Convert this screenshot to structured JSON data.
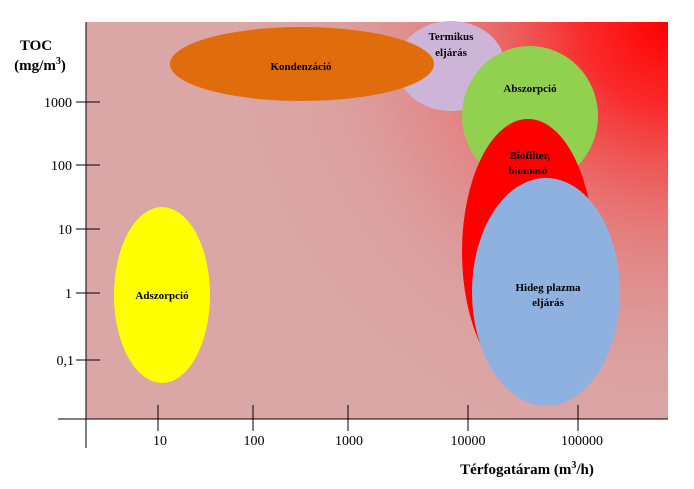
{
  "y_axis": {
    "title_line1": "TOC",
    "title_line2_prefix": "(mg/m",
    "title_line2_sup": "3",
    "title_line2_suffix": ")",
    "ticks": [
      "1000",
      "100",
      "10",
      "1",
      "0,1"
    ]
  },
  "x_axis": {
    "title_prefix": "Térfogatáram (m",
    "title_sup": "3",
    "title_suffix": "/h)",
    "ticks": [
      "10",
      "100",
      "1000",
      "10000",
      "100000"
    ]
  },
  "regions": {
    "kondenzacio": "Kondenzáció",
    "termikus_1": "Termikus",
    "termikus_2": "eljárás",
    "abszorpcio": "Abszorpció",
    "biofilter_1": "Biofilter,",
    "biofilter_2": "biomosó",
    "hideg_1": "Hideg plazma",
    "hideg_2": "eljárás",
    "adszorpcio": "Adszorpció"
  },
  "colors": {
    "background_base": "#dba6a6",
    "background_hot": "#ff0000",
    "kondenzacio": "#e06c0c",
    "termikus": "#cdb5d8",
    "abszorpcio": "#92d050",
    "biofilter": "#ff0000",
    "hideg_plazma": "#8fb1e0",
    "adszorpcio": "#ffff00"
  }
}
